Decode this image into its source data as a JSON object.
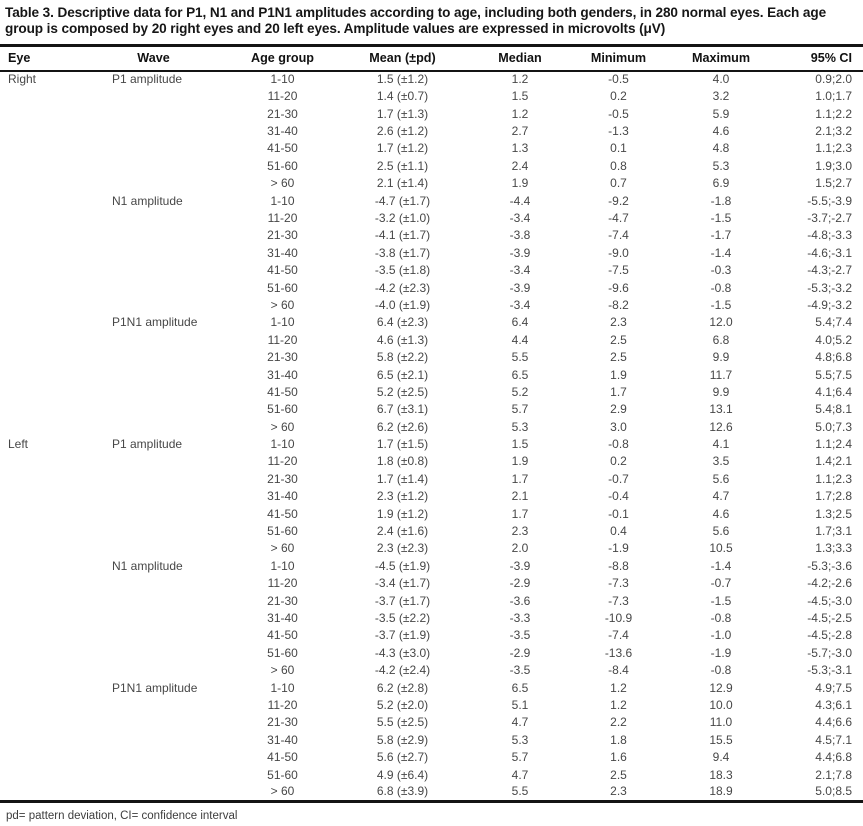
{
  "title": "Table 3. Descriptive data for P1, N1 and P1N1 amplitudes according to age, including both genders, in 280 normal eyes. Each age group is composed by 20 right eyes and 20 left eyes. Amplitude values are expressed in microvolts (μV)",
  "columns": [
    "Eye",
    "Wave",
    "Age group",
    "Mean (±pd)",
    "Median",
    "Minimum",
    "Maximum",
    "95% CI"
  ],
  "footnote": "pd= pattern deviation, CI= confidence interval",
  "groups": [
    {
      "eye": "Right",
      "waves": [
        {
          "wave": "P1 amplitude",
          "rows": [
            [
              "1-10",
              "1.5 (±1.2)",
              "1.2",
              "-0.5",
              "4.0",
              "0.9;2.0"
            ],
            [
              "11-20",
              "1.4 (±0.7)",
              "1.5",
              "0.2",
              "3.2",
              "1.0;1.7"
            ],
            [
              "21-30",
              "1.7 (±1.3)",
              "1.2",
              "-0.5",
              "5.9",
              "1.1;2.2"
            ],
            [
              "31-40",
              "2.6 (±1.2)",
              "2.7",
              "-1.3",
              "4.6",
              "2.1;3.2"
            ],
            [
              "41-50",
              "1.7 (±1.2)",
              "1.3",
              "0.1",
              "4.8",
              "1.1;2.3"
            ],
            [
              "51-60",
              "2.5 (±1.1)",
              "2.4",
              "0.8",
              "5.3",
              "1.9;3.0"
            ],
            [
              "> 60",
              "2.1 (±1.4)",
              "1.9",
              "0.7",
              "6.9",
              "1.5;2.7"
            ]
          ]
        },
        {
          "wave": "N1 amplitude",
          "rows": [
            [
              "1-10",
              "-4.7 (±1.7)",
              "-4.4",
              "-9.2",
              "-1.8",
              "-5.5;-3.9"
            ],
            [
              "11-20",
              "-3.2 (±1.0)",
              "-3.4",
              "-4.7",
              "-1.5",
              "-3.7;-2.7"
            ],
            [
              "21-30",
              "-4.1 (±1.7)",
              "-3.8",
              "-7.4",
              "-1.7",
              "-4.8;-3.3"
            ],
            [
              "31-40",
              "-3.8 (±1.7)",
              "-3.9",
              "-9.0",
              "-1.4",
              "-4.6;-3.1"
            ],
            [
              "41-50",
              "-3.5 (±1.8)",
              "-3.4",
              "-7.5",
              "-0.3",
              "-4.3;-2.7"
            ],
            [
              "51-60",
              "-4.2 (±2.3)",
              "-3.9",
              "-9.6",
              "-0.8",
              "-5.3;-3.2"
            ],
            [
              "> 60",
              "-4.0 (±1.9)",
              "-3.4",
              "-8.2",
              "-1.5",
              "-4.9;-3.2"
            ]
          ]
        },
        {
          "wave": "P1N1 amplitude",
          "rows": [
            [
              "1-10",
              "6.4 (±2.3)",
              "6.4",
              "2.3",
              "12.0",
              "5.4;7.4"
            ],
            [
              "11-20",
              "4.6 (±1.3)",
              "4.4",
              "2.5",
              "6.8",
              "4.0;5.2"
            ],
            [
              "21-30",
              "5.8 (±2.2)",
              "5.5",
              "2.5",
              "9.9",
              "4.8;6.8"
            ],
            [
              "31-40",
              "6.5 (±2.1)",
              "6.5",
              "1.9",
              "11.7",
              "5.5;7.5"
            ],
            [
              "41-50",
              "5.2 (±2.5)",
              "5.2",
              "1.7",
              "9.9",
              "4.1;6.4"
            ],
            [
              "51-60",
              "6.7 (±3.1)",
              "5.7",
              "2.9",
              "13.1",
              "5.4;8.1"
            ],
            [
              "> 60",
              "6.2 (±2.6)",
              "5.3",
              "3.0",
              "12.6",
              "5.0;7.3"
            ]
          ]
        }
      ]
    },
    {
      "eye": "Left",
      "waves": [
        {
          "wave": "P1 amplitude",
          "rows": [
            [
              "1-10",
              "1.7 (±1.5)",
              "1.5",
              "-0.8",
              "4.1",
              "1.1;2.4"
            ],
            [
              "11-20",
              "1.8 (±0.8)",
              "1.9",
              "0.2",
              "3.5",
              "1.4;2.1"
            ],
            [
              "21-30",
              "1.7 (±1.4)",
              "1.7",
              "-0.7",
              "5.6",
              "1.1;2.3"
            ],
            [
              "31-40",
              "2.3 (±1.2)",
              "2.1",
              "-0.4",
              "4.7",
              "1.7;2.8"
            ],
            [
              "41-50",
              "1.9 (±1.2)",
              "1.7",
              "-0.1",
              "4.6",
              "1.3;2.5"
            ],
            [
              "51-60",
              "2.4 (±1.6)",
              "2.3",
              "0.4",
              "5.6",
              "1.7;3.1"
            ],
            [
              "> 60",
              "2.3 (±2.3)",
              "2.0",
              "-1.9",
              "10.5",
              "1.3;3.3"
            ]
          ]
        },
        {
          "wave": "N1 amplitude",
          "rows": [
            [
              "1-10",
              "-4.5 (±1.9)",
              "-3.9",
              "-8.8",
              "-1.4",
              "-5.3;-3.6"
            ],
            [
              "11-20",
              "-3.4 (±1.7)",
              "-2.9",
              "-7.3",
              "-0.7",
              "-4.2;-2.6"
            ],
            [
              "21-30",
              "-3.7 (±1.7)",
              "-3.6",
              "-7.3",
              "-1.5",
              "-4.5;-3.0"
            ],
            [
              "31-40",
              "-3.5 (±2.2)",
              "-3.3",
              "-10.9",
              "-0.8",
              "-4.5;-2.5"
            ],
            [
              "41-50",
              "-3.7 (±1.9)",
              "-3.5",
              "-7.4",
              "-1.0",
              "-4.5;-2.8"
            ],
            [
              "51-60",
              "-4.3 (±3.0)",
              "-2.9",
              "-13.6",
              "-1.9",
              "-5.7;-3.0"
            ],
            [
              "> 60",
              "-4.2 (±2.4)",
              "-3.5",
              "-8.4",
              "-0.8",
              "-5.3;-3.1"
            ]
          ]
        },
        {
          "wave": "P1N1 amplitude",
          "rows": [
            [
              "1-10",
              "6.2 (±2.8)",
              "6.5",
              "1.2",
              "12.9",
              "4.9;7.5"
            ],
            [
              "11-20",
              "5.2 (±2.0)",
              "5.1",
              "1.2",
              "10.0",
              "4.3;6.1"
            ],
            [
              "21-30",
              "5.5 (±2.5)",
              "4.7",
              "2.2",
              "11.0",
              "4.4;6.6"
            ],
            [
              "31-40",
              "5.8 (±2.9)",
              "5.3",
              "1.8",
              "15.5",
              "4.5;7.1"
            ],
            [
              "41-50",
              "5.6 (±2.7)",
              "5.7",
              "1.6",
              "9.4",
              "4.4;6.8"
            ],
            [
              "51-60",
              "4.9 (±6.4)",
              "4.7",
              "2.5",
              "18.3",
              "2.1;7.8"
            ],
            [
              "> 60",
              "6.8 (±3.9)",
              "5.5",
              "2.3",
              "18.9",
              "5.0;8.5"
            ]
          ]
        }
      ]
    }
  ]
}
